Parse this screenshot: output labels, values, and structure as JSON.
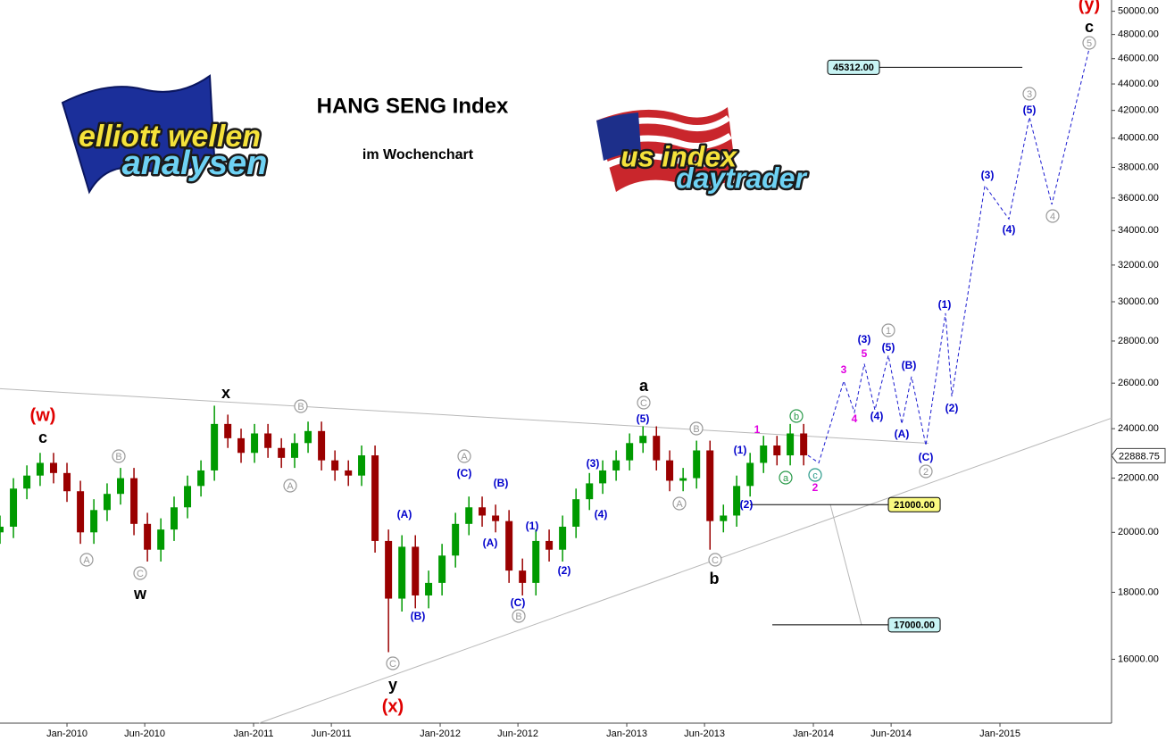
{
  "logos": {
    "left": [
      "elliott wellen",
      "analysen"
    ],
    "right": [
      "us index",
      "daytrader"
    ]
  },
  "chart_data": {
    "type": "candlestick",
    "title": "HANG SENG Index",
    "subtitle": "im Wochenchart",
    "log_scale": true,
    "xlim": [
      2009.641,
      2015.598
    ],
    "ylim": [
      14300,
      51000
    ],
    "xticks": [
      {
        "value": 2010,
        "label": "Jan-2010"
      },
      {
        "value": 2010.4167,
        "label": "Jun-2010"
      },
      {
        "value": 2011,
        "label": "Jan-2011"
      },
      {
        "value": 2011.4167,
        "label": "Jun-2011"
      },
      {
        "value": 2012,
        "label": "Jan-2012"
      },
      {
        "value": 2012.4167,
        "label": "Jun-2012"
      },
      {
        "value": 2013,
        "label": "Jan-2013"
      },
      {
        "value": 2013.4167,
        "label": "Jun-2013"
      },
      {
        "value": 2014,
        "label": "Jan-2014"
      },
      {
        "value": 2014.4167,
        "label": "Jun-2014"
      },
      {
        "value": 2015,
        "label": "Jan-2015"
      }
    ],
    "yticks": [
      {
        "value": 16000,
        "label": "16000.00"
      },
      {
        "value": 18000,
        "label": "18000.00"
      },
      {
        "value": 20000,
        "label": "20000.00"
      },
      {
        "value": 22000,
        "label": "22000.00"
      },
      {
        "value": 24000,
        "label": "24000.00"
      },
      {
        "value": 26000,
        "label": "26000.00"
      },
      {
        "value": 28000,
        "label": "28000.00"
      },
      {
        "value": 30000,
        "label": "30000.00"
      },
      {
        "value": 32000,
        "label": "32000.00"
      },
      {
        "value": 34000,
        "label": "34000.00"
      },
      {
        "value": 36000,
        "label": "36000.00"
      },
      {
        "value": 38000,
        "label": "38000.00"
      },
      {
        "value": 40000,
        "label": "40000.00"
      },
      {
        "value": 42000,
        "label": "42000.00"
      },
      {
        "value": 44000,
        "label": "44000.00"
      },
      {
        "value": 46000,
        "label": "46000.00"
      },
      {
        "value": 48000,
        "label": "48000.00"
      },
      {
        "value": 50000,
        "label": "50000.00"
      }
    ],
    "up_color": "#009a00",
    "down_color": "#9a0000",
    "x": [
      2009.641,
      2009.713,
      2009.785,
      2009.856,
      2009.928,
      2010.0,
      2010.072,
      2010.144,
      2010.215,
      2010.287,
      2010.359,
      2010.431,
      2010.503,
      2010.574,
      2010.646,
      2010.718,
      2010.79,
      2010.862,
      2010.933,
      2011.005,
      2011.077,
      2011.149,
      2011.22,
      2011.292,
      2011.364,
      2011.436,
      2011.508,
      2011.579,
      2011.651,
      2011.723,
      2011.795,
      2011.867,
      2011.938,
      2012.01,
      2012.082,
      2012.154,
      2012.225,
      2012.297,
      2012.369,
      2012.441,
      2012.513,
      2012.584,
      2012.656,
      2012.728,
      2012.8,
      2012.871,
      2012.943,
      2013.015,
      2013.087,
      2013.159,
      2013.23,
      2013.302,
      2013.374,
      2013.446,
      2013.518,
      2013.589,
      2013.661,
      2013.733,
      2013.805,
      2013.876,
      2013.948
    ],
    "open": [
      20000,
      20200,
      21600,
      22100,
      22600,
      22200,
      21500,
      20000,
      20800,
      21400,
      22000,
      20300,
      19400,
      20100,
      20900,
      21700,
      22300,
      24200,
      23600,
      23000,
      23800,
      23200,
      22800,
      23400,
      23900,
      22700,
      22300,
      22100,
      22900,
      19700,
      17800,
      19500,
      17900,
      18300,
      19200,
      20300,
      20900,
      20600,
      20400,
      18700,
      18300,
      19700,
      19400,
      20200,
      21200,
      21800,
      22300,
      22700,
      23400,
      23700,
      22700,
      21900,
      22000,
      23100,
      20400,
      20600,
      21700,
      22600,
      23300,
      22900,
      23800
    ],
    "high": [
      20600,
      22000,
      22500,
      23000,
      23000,
      22600,
      21900,
      21200,
      21800,
      22400,
      22400,
      20700,
      20500,
      21300,
      22100,
      22700,
      24990,
      24600,
      24000,
      24200,
      24200,
      23600,
      23800,
      24300,
      24300,
      23100,
      22700,
      23300,
      23300,
      20100,
      19900,
      19900,
      18700,
      19600,
      20700,
      21300,
      21300,
      21000,
      20800,
      19100,
      20100,
      20100,
      20600,
      21600,
      22200,
      22700,
      23100,
      23800,
      24100,
      24100,
      23100,
      22400,
      23500,
      23500,
      21000,
      22100,
      23000,
      23700,
      23700,
      24200,
      24200
    ],
    "low": [
      19600,
      19800,
      21200,
      21700,
      21800,
      21100,
      19600,
      19600,
      20400,
      21000,
      19900,
      19000,
      19000,
      19700,
      20500,
      21300,
      21900,
      23200,
      22600,
      22600,
      22800,
      22400,
      22400,
      23000,
      22300,
      21900,
      21700,
      21700,
      19300,
      16200,
      17400,
      17500,
      17500,
      17900,
      18800,
      19900,
      20200,
      20000,
      18300,
      17900,
      17900,
      19000,
      19000,
      19800,
      20800,
      21400,
      21900,
      22300,
      23000,
      22300,
      21500,
      21500,
      21600,
      19400,
      20000,
      20200,
      21300,
      22200,
      22500,
      22500,
      22500
    ],
    "close": [
      20200,
      21600,
      22100,
      22600,
      22200,
      21500,
      20000,
      20800,
      21400,
      22000,
      20300,
      19400,
      20100,
      20900,
      21700,
      22300,
      24200,
      23600,
      23000,
      23800,
      23200,
      22800,
      23400,
      23900,
      22700,
      22300,
      22100,
      22900,
      19700,
      17800,
      19500,
      17900,
      18300,
      19200,
      20300,
      20900,
      20600,
      20400,
      18700,
      18300,
      19700,
      19400,
      20200,
      21200,
      21800,
      22300,
      22700,
      23400,
      23700,
      22700,
      21900,
      22000,
      23100,
      20400,
      20600,
      21700,
      22600,
      23300,
      22900,
      23800,
      22900
    ],
    "forecast": {
      "color": "#1a1ad0",
      "x": [
        2013.971,
        2014.029,
        2014.163,
        2014.22,
        2014.273,
        2014.33,
        2014.402,
        2014.474,
        2014.526,
        2014.603,
        2014.708,
        2014.742,
        2014.919,
        2015.048,
        2015.158,
        2015.278,
        2015.478
      ],
      "values": [
        22900,
        22600,
        26100,
        24700,
        26900,
        24800,
        27300,
        24200,
        26300,
        23300,
        29400,
        25400,
        36800,
        34700,
        41500,
        35600,
        46800
      ]
    },
    "trendlines": [
      {
        "x": [
          2009.641,
          2014.617
        ],
        "values": [
          25750,
          23390
        ]
      },
      {
        "x": [
          2011.029,
          2015.598
        ],
        "values": [
          14300,
          24450
        ]
      },
      {
        "x": [
          2014.091,
          2014.258
        ],
        "values": [
          21000,
          17000
        ]
      }
    ],
    "levels": [
      {
        "value": 45312,
        "label": "45312.00",
        "x": [
          2014.354,
          2015.12
        ],
        "color": "#c8f4f4",
        "side": "left"
      },
      {
        "value": 21000,
        "label": "21000.00",
        "x": [
          2013.66,
          2014.402
        ],
        "color": "#fafa80",
        "side": "right"
      },
      {
        "value": 17000,
        "label": "17000.00",
        "x": [
          2013.78,
          2014.402
        ],
        "color": "#c8f4f4",
        "side": "right"
      }
    ],
    "last_price": {
      "value": 22888.75,
      "label": "22888.75"
    },
    "annotations": [
      {
        "text": "(w)",
        "color": "#e00000",
        "style": "degree"
      },
      {
        "text": "c",
        "color": "#000000",
        "style": "letter"
      },
      {
        "text": "x",
        "color": "#000000",
        "style": "letter"
      },
      {
        "text": "B",
        "color": "#999999",
        "style": "circle"
      },
      {
        "text": "A",
        "color": "#999999",
        "style": "circle"
      },
      {
        "text": "B",
        "color": "#999999",
        "style": "circle"
      },
      {
        "text": "A",
        "color": "#999999",
        "style": "circle"
      },
      {
        "text": "C",
        "color": "#999999",
        "style": "circle"
      },
      {
        "text": "w",
        "color": "#000000",
        "style": "letter"
      },
      {
        "text": "(x)",
        "color": "#e00000",
        "style": "degree"
      },
      {
        "text": "y",
        "color": "#000000",
        "style": "letter"
      },
      {
        "text": "C",
        "color": "#999999",
        "style": "circle"
      },
      {
        "text": "(A)",
        "color": "#0000cc",
        "style": "wave"
      },
      {
        "text": "(B)",
        "color": "#0000cc",
        "style": "wave"
      },
      {
        "text": "A",
        "color": "#999999",
        "style": "circle"
      },
      {
        "text": "(C)",
        "color": "#0000cc",
        "style": "wave"
      },
      {
        "text": "(B)",
        "color": "#0000cc",
        "style": "wave"
      },
      {
        "text": "(A)",
        "color": "#0000cc",
        "style": "wave"
      },
      {
        "text": "(C)",
        "color": "#0000cc",
        "style": "wave"
      },
      {
        "text": "B",
        "color": "#999999",
        "style": "circle"
      },
      {
        "text": "(1)",
        "color": "#0000cc",
        "style": "wave"
      },
      {
        "text": "(2)",
        "color": "#0000cc",
        "style": "wave"
      },
      {
        "text": "(3)",
        "color": "#0000cc",
        "style": "wave"
      },
      {
        "text": "(4)",
        "color": "#0000cc",
        "style": "wave"
      },
      {
        "text": "C",
        "color": "#999999",
        "style": "circle"
      },
      {
        "text": "(5)",
        "color": "#0000cc",
        "style": "wave"
      },
      {
        "text": "a",
        "color": "#000000",
        "style": "letter"
      },
      {
        "text": "B",
        "color": "#999999",
        "style": "circle"
      },
      {
        "text": "A",
        "color": "#999999",
        "style": "circle"
      },
      {
        "text": "(1)",
        "color": "#0000cc",
        "style": "wave"
      },
      {
        "text": "(2)",
        "color": "#0000cc",
        "style": "wave"
      },
      {
        "text": "C",
        "color": "#999999",
        "style": "circle"
      },
      {
        "text": "b",
        "color": "#000000",
        "style": "letter"
      },
      {
        "text": "1",
        "color": "#e000e0",
        "style": "minor"
      },
      {
        "text": "b",
        "color": "#2a9a4a",
        "style": "circle"
      },
      {
        "text": "a",
        "color": "#2a9a4a",
        "style": "circle"
      },
      {
        "text": "c",
        "color": "#2a9a8a",
        "style": "circle"
      },
      {
        "text": "2",
        "color": "#e000e0",
        "style": "minor"
      },
      {
        "text": "3",
        "color": "#e000e0",
        "style": "minor"
      },
      {
        "text": "4",
        "color": "#e000e0",
        "style": "minor"
      },
      {
        "text": "(3)",
        "color": "#0000cc",
        "style": "wave"
      },
      {
        "text": "5",
        "color": "#e000e0",
        "style": "minor"
      },
      {
        "text": "(4)",
        "color": "#0000cc",
        "style": "wave"
      },
      {
        "text": "1",
        "color": "#999999",
        "style": "circle"
      },
      {
        "text": "(5)",
        "color": "#0000cc",
        "style": "wave"
      },
      {
        "text": "(B)",
        "color": "#0000cc",
        "style": "wave"
      },
      {
        "text": "(A)",
        "color": "#0000cc",
        "style": "wave"
      },
      {
        "text": "(C)",
        "color": "#0000cc",
        "style": "wave"
      },
      {
        "text": "2",
        "color": "#999999",
        "style": "circle"
      },
      {
        "text": "(1)",
        "color": "#0000cc",
        "style": "wave"
      },
      {
        "text": "(2)",
        "color": "#0000cc",
        "style": "wave"
      },
      {
        "text": "(3)",
        "color": "#0000cc",
        "style": "wave"
      },
      {
        "text": "(4)",
        "color": "#0000cc",
        "style": "wave"
      },
      {
        "text": "3",
        "color": "#999999",
        "style": "circle"
      },
      {
        "text": "(5)",
        "color": "#0000cc",
        "style": "wave"
      },
      {
        "text": "4",
        "color": "#999999",
        "style": "circle"
      },
      {
        "text": "5",
        "color": "#999999",
        "style": "circle"
      },
      {
        "text": "c",
        "color": "#000000",
        "style": "letter"
      },
      {
        "text": "(y)",
        "color": "#e00000",
        "style": "degree"
      }
    ]
  }
}
